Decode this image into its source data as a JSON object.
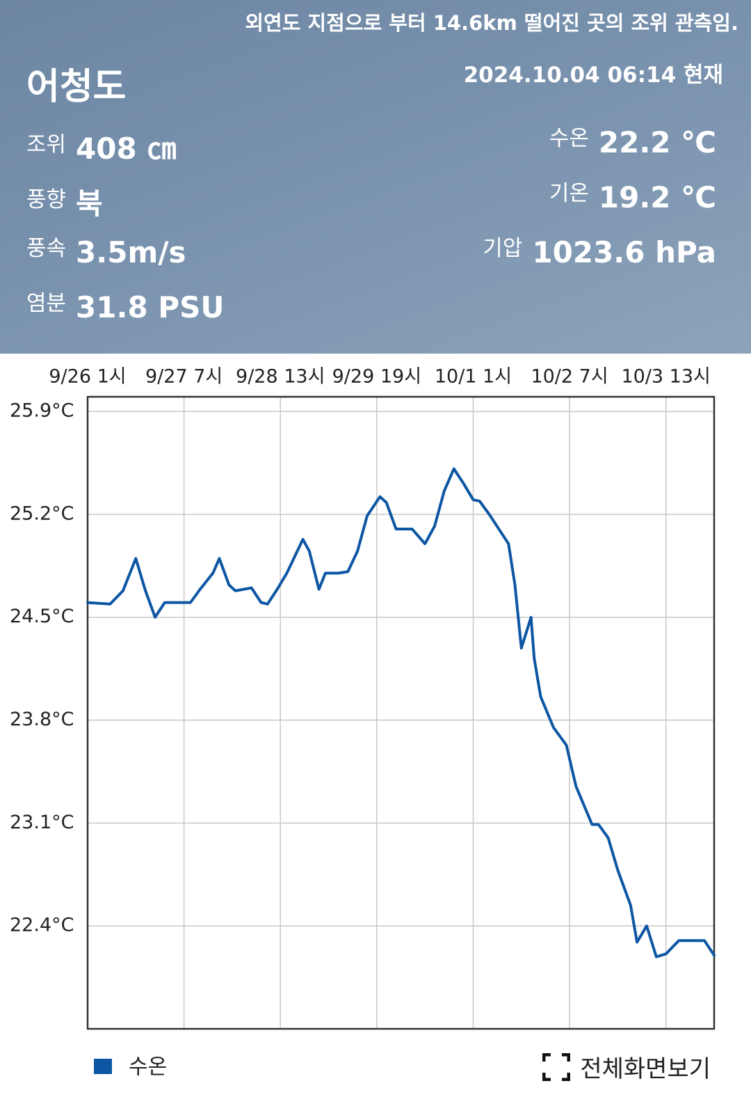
{
  "header": {
    "notice": "외연도 지점으로 부터 14.6km 떨어진 곳의 조위 관측임.",
    "station": "어청도",
    "timestamp": "2024.10.04 06:14 현재",
    "left": [
      {
        "label": "조위",
        "value": "408 ㎝"
      },
      {
        "label": "풍향",
        "value": "북"
      },
      {
        "label": "풍속",
        "value": "3.5m/s"
      },
      {
        "label": "염분",
        "value": "31.8 PSU"
      }
    ],
    "right": [
      {
        "label": "수온",
        "value": "22.2 ℃"
      },
      {
        "label": "기온",
        "value": "19.2 ℃"
      },
      {
        "label": "기압",
        "value": "1023.6 hPa"
      }
    ]
  },
  "chart_data": {
    "type": "line",
    "x": [
      0,
      7,
      11,
      15,
      18,
      21,
      24,
      27,
      32,
      35,
      39,
      41,
      44,
      46,
      51,
      54,
      56,
      59,
      62,
      67,
      69,
      72,
      74,
      78,
      81,
      84,
      87,
      91,
      93,
      96,
      99,
      101,
      105,
      108,
      111,
      114,
      117,
      120,
      122,
      125,
      128,
      131,
      133,
      135,
      138,
      139,
      141,
      145,
      149,
      152,
      157,
      159,
      162,
      165,
      169,
      171,
      174,
      177,
      180,
      184,
      187,
      192,
      195
    ],
    "series": [
      {
        "name": "수온",
        "color": "#0d56a3",
        "values": [
          24.6,
          24.59,
          24.68,
          24.9,
          24.68,
          24.5,
          24.6,
          24.6,
          24.6,
          24.69,
          24.8,
          24.9,
          24.72,
          24.68,
          24.7,
          24.6,
          24.59,
          24.69,
          24.8,
          25.03,
          24.95,
          24.69,
          24.8,
          24.8,
          24.81,
          24.95,
          25.19,
          25.32,
          25.28,
          25.1,
          25.1,
          25.1,
          25.0,
          25.12,
          25.36,
          25.51,
          25.41,
          25.3,
          25.29,
          25.2,
          25.1,
          25.0,
          24.72,
          24.29,
          24.5,
          24.22,
          23.96,
          23.75,
          23.63,
          23.35,
          23.09,
          23.09,
          23.0,
          22.78,
          22.54,
          22.29,
          22.4,
          22.19,
          22.21,
          22.3,
          22.3,
          22.3,
          22.2
        ]
      }
    ],
    "xlim": [
      0,
      195
    ],
    "xticks": [
      {
        "value": 0,
        "label": "9/26 1시"
      },
      {
        "value": 30,
        "label": "9/27 7시"
      },
      {
        "value": 60,
        "label": "9/28 13시"
      },
      {
        "value": 90,
        "label": "9/29 19시"
      },
      {
        "value": 120,
        "label": "10/1 1시"
      },
      {
        "value": 150,
        "label": "10/2 7시"
      },
      {
        "value": 180,
        "label": "10/3 13시"
      }
    ],
    "ylim": [
      21.7,
      26.0
    ],
    "yticks": [
      {
        "value": 25.9,
        "label": "25.9°C"
      },
      {
        "value": 25.2,
        "label": "25.2°C"
      },
      {
        "value": 24.5,
        "label": "24.5°C"
      },
      {
        "value": 23.8,
        "label": "23.8°C"
      },
      {
        "value": 23.1,
        "label": "23.1°C"
      },
      {
        "value": 22.4,
        "label": "22.4°C"
      }
    ],
    "grid": true,
    "legend": "bottom-left"
  },
  "fullscreen_button": "전체화면보기"
}
